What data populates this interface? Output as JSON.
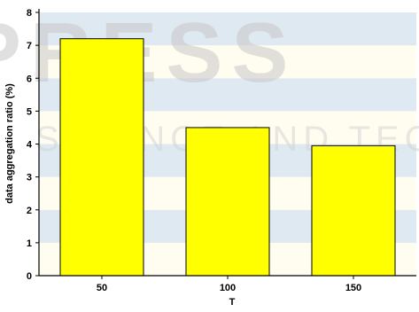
{
  "chart_data": {
    "type": "bar",
    "categories": [
      "50",
      "100",
      "150"
    ],
    "values": [
      7.2,
      4.5,
      3.95
    ],
    "title": "",
    "xlabel": "T",
    "ylabel": "data aggregation ratio (%)",
    "ylim": [
      0,
      8
    ],
    "yticks": [
      "0",
      "1",
      "2",
      "3",
      "4",
      "5",
      "6",
      "7",
      "8"
    ],
    "grid": true,
    "legend": "none"
  },
  "watermark": {
    "text_top": "PRESS",
    "text_bottom": "SCIENCE AND TECHNOLOGY PUBLICATIONS"
  },
  "colors": {
    "bar_fill": "#ffff00",
    "bar_stroke": "#000000",
    "band_light": "#fffdf0",
    "band_blue": "#dfe9f2",
    "watermark": "#c8c8c8"
  }
}
